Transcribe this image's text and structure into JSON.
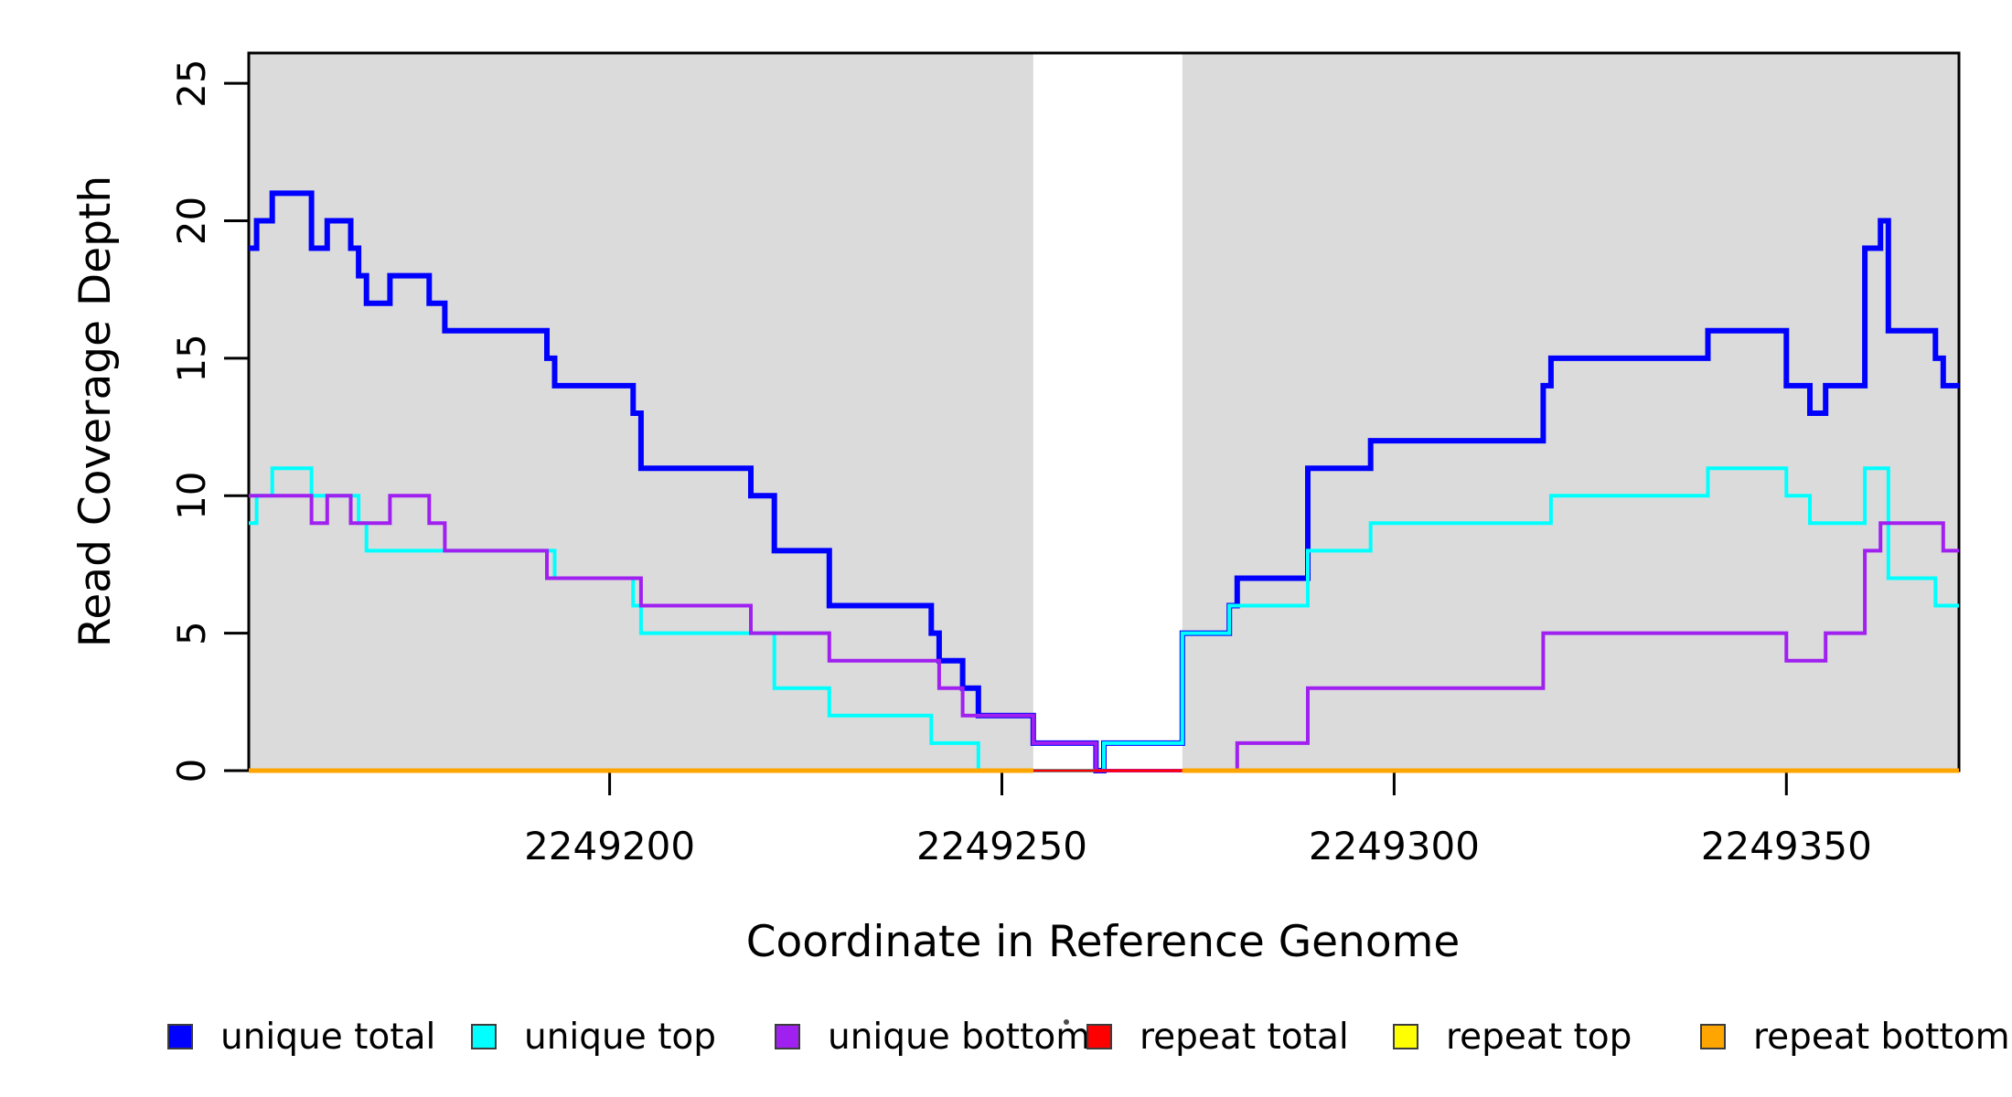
{
  "chart_data": {
    "type": "line",
    "subtype": "step-coverage",
    "title": "",
    "xlabel": "Coordinate in Reference Genome",
    "ylabel": "Read Coverage Depth",
    "xlim": [
      2249154,
      2249372
    ],
    "ylim": [
      0,
      26.1
    ],
    "x_ticks": [
      2249200,
      2249250,
      2249300,
      2249350
    ],
    "y_ticks": [
      0,
      5,
      10,
      15,
      20,
      25
    ],
    "grid": false,
    "background_color": "#FFFFFF",
    "panel_color": "#DBDBDB",
    "border_color": "#000000",
    "shaded_regions": [
      [
        2249154,
        2249254
      ],
      [
        2249273,
        2249372
      ]
    ],
    "unshaded_band": [
      2249254,
      2249273
    ],
    "series": [
      {
        "name": "unique total",
        "color": "#0000FF",
        "width": 6,
        "steps": [
          [
            2249154,
            19
          ],
          [
            2249155,
            20
          ],
          [
            2249157,
            21
          ],
          [
            2249162,
            19
          ],
          [
            2249164,
            20
          ],
          [
            2249167,
            19
          ],
          [
            2249168,
            18
          ],
          [
            2249169,
            17
          ],
          [
            2249172,
            18
          ],
          [
            2249177,
            17
          ],
          [
            2249179,
            16
          ],
          [
            2249192,
            15
          ],
          [
            2249193,
            14
          ],
          [
            2249203,
            13
          ],
          [
            2249204,
            11
          ],
          [
            2249218,
            10
          ],
          [
            2249221,
            8
          ],
          [
            2249228,
            6
          ],
          [
            2249241,
            5
          ],
          [
            2249242,
            4
          ],
          [
            2249245,
            3
          ],
          [
            2249247,
            2
          ],
          [
            2249254,
            1
          ],
          [
            2249262,
            0
          ],
          [
            2249263,
            1
          ],
          [
            2249273,
            5
          ],
          [
            2249279,
            6
          ],
          [
            2249280,
            7
          ],
          [
            2249289,
            11
          ],
          [
            2249297,
            12
          ],
          [
            2249319,
            14
          ],
          [
            2249320,
            15
          ],
          [
            2249340,
            16
          ],
          [
            2249350,
            14
          ],
          [
            2249353,
            13
          ],
          [
            2249355,
            14
          ],
          [
            2249360,
            19
          ],
          [
            2249362,
            20
          ],
          [
            2249363,
            16
          ],
          [
            2249369,
            15
          ],
          [
            2249370,
            14
          ]
        ]
      },
      {
        "name": "unique top",
        "color": "#00FFFF",
        "width": 4,
        "steps": [
          [
            2249154,
            9
          ],
          [
            2249155,
            10
          ],
          [
            2249157,
            11
          ],
          [
            2249162,
            10
          ],
          [
            2249168,
            9
          ],
          [
            2249169,
            8
          ],
          [
            2249193,
            7
          ],
          [
            2249203,
            6
          ],
          [
            2249204,
            5
          ],
          [
            2249221,
            3
          ],
          [
            2249228,
            2
          ],
          [
            2249241,
            1
          ],
          [
            2249247,
            0
          ],
          [
            2249263,
            1
          ],
          [
            2249273,
            5
          ],
          [
            2249279,
            6
          ],
          [
            2249289,
            8
          ],
          [
            2249297,
            9
          ],
          [
            2249320,
            10
          ],
          [
            2249340,
            11
          ],
          [
            2249350,
            10
          ],
          [
            2249353,
            9
          ],
          [
            2249360,
            11
          ],
          [
            2249363,
            7
          ],
          [
            2249369,
            6
          ]
        ]
      },
      {
        "name": "unique bottom",
        "color": "#A020F0",
        "width": 4,
        "steps": [
          [
            2249154,
            10
          ],
          [
            2249162,
            9
          ],
          [
            2249164,
            10
          ],
          [
            2249167,
            9
          ],
          [
            2249172,
            10
          ],
          [
            2249177,
            9
          ],
          [
            2249179,
            8
          ],
          [
            2249192,
            7
          ],
          [
            2249204,
            6
          ],
          [
            2249218,
            5
          ],
          [
            2249228,
            4
          ],
          [
            2249242,
            3
          ],
          [
            2249245,
            2
          ],
          [
            2249254,
            1
          ],
          [
            2249262,
            0
          ],
          [
            2249280,
            1
          ],
          [
            2249289,
            3
          ],
          [
            2249319,
            5
          ],
          [
            2249350,
            4
          ],
          [
            2249355,
            5
          ],
          [
            2249360,
            8
          ],
          [
            2249362,
            9
          ],
          [
            2249370,
            8
          ]
        ]
      },
      {
        "name": "repeat total",
        "color": "#FF0000",
        "width": 3,
        "steps": [
          [
            2249154,
            0
          ]
        ]
      },
      {
        "name": "repeat top",
        "color": "#FFFF00",
        "width": 4,
        "steps": [
          [
            2249154,
            0
          ]
        ],
        "gaps": [
          [
            2249254,
            2249273
          ]
        ]
      },
      {
        "name": "repeat bottom",
        "color": "#FFA500",
        "width": 5,
        "steps": [
          [
            2249154,
            0
          ]
        ],
        "gaps": [
          [
            2249254,
            2249273
          ]
        ]
      }
    ],
    "legend": {
      "position": "bottom",
      "entries": [
        {
          "label": "unique total",
          "color": "#0000FF"
        },
        {
          "label": "unique top",
          "color": "#00FFFF"
        },
        {
          "label": "unique bottom",
          "color": "#A020F0"
        },
        {
          "label": "repeat total",
          "color": "#FF0000"
        },
        {
          "label": "repeat top",
          "color": "#FFFF00"
        },
        {
          "label": "repeat bottom",
          "color": "#FFA500"
        }
      ]
    }
  }
}
